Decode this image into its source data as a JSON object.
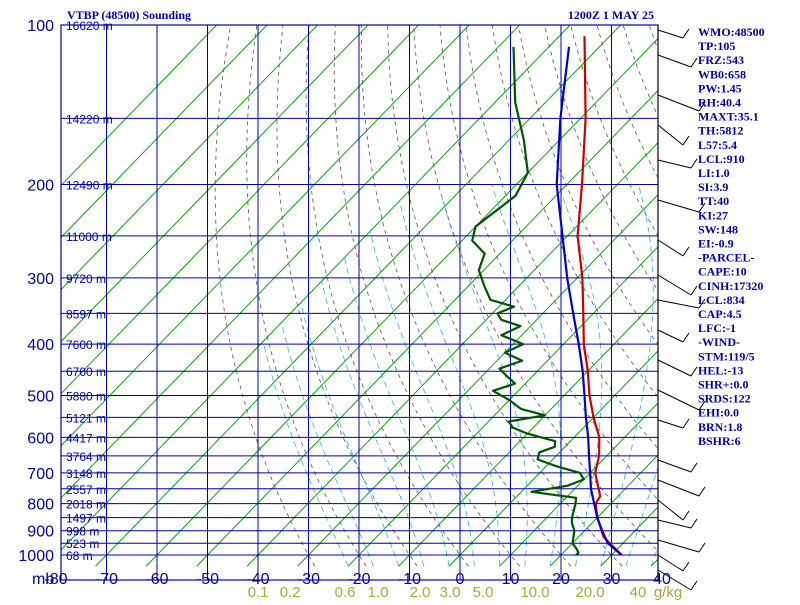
{
  "chart_data": {
    "type": "skew-t log-p sounding",
    "title": "VTBP (48500) Sounding",
    "time_label": "1200Z  1 MAY 25",
    "pressure_labels": [
      "100",
      "200",
      "300",
      "400",
      "500",
      "600",
      "700",
      "800",
      "900",
      "1000",
      "mb"
    ],
    "pressure_levels": [
      100,
      200,
      300,
      400,
      500,
      600,
      700,
      800,
      900,
      1000
    ],
    "height_levels": [
      {
        "p": 100,
        "label": "16620 m"
      },
      {
        "p": 150,
        "label": "14220 m"
      },
      {
        "p": 200,
        "label": "12490 m"
      },
      {
        "p": 250,
        "label": "11000 m"
      },
      {
        "p": 300,
        "label": "9720 m"
      },
      {
        "p": 350,
        "label": "8597 m"
      },
      {
        "p": 400,
        "label": "7600 m"
      },
      {
        "p": 450,
        "label": "6700 m"
      },
      {
        "p": 500,
        "label": "5880 m"
      },
      {
        "p": 550,
        "label": "5121 m"
      },
      {
        "p": 600,
        "label": "4417 m"
      },
      {
        "p": 650,
        "label": "3764 m"
      },
      {
        "p": 700,
        "label": "3148 m"
      },
      {
        "p": 750,
        "label": "2557 m"
      },
      {
        "p": 800,
        "label": "2018 m"
      },
      {
        "p": 850,
        "label": "1497 m"
      },
      {
        "p": 900,
        "label": "998 m"
      },
      {
        "p": 950,
        "label": "523 m"
      },
      {
        "p": 1000,
        "label": "68 m"
      }
    ],
    "temperature_ticks": [
      -80,
      -70,
      -60,
      -50,
      -40,
      -30,
      -20,
      -10,
      0,
      10,
      20,
      30,
      40
    ],
    "temperature_tick_labels": [
      "-80",
      "-70",
      "-60",
      "-50",
      "-40",
      "-30",
      "-20",
      "-10",
      "0",
      "10",
      "20",
      "30",
      "40"
    ],
    "mixing_ratio_labels": [
      "0.1",
      "0.2",
      "0.6",
      "1.0",
      "2.0",
      "3.0",
      "5.0",
      "10.0",
      "20.0",
      "40",
      "g/kg"
    ],
    "colors": {
      "frame": "#0000aa",
      "isobar": "#0000aa",
      "isotherm": "#00aa00",
      "dry_adiabat": "#555555",
      "moist_adiabat": "#33aaff",
      "temperature": "#cc0000",
      "dewpoint": "#005500",
      "parcel": "#0000cc",
      "mixing_label": "#aaaa33",
      "label": "#0000aa"
    },
    "series": [
      {
        "role": "temperature",
        "points": [
          [
            1000,
            32
          ],
          [
            925,
            25
          ],
          [
            850,
            20
          ],
          [
            800,
            17
          ],
          [
            775,
            16.5
          ],
          [
            700,
            11
          ],
          [
            650,
            8.5
          ],
          [
            600,
            5
          ],
          [
            550,
            0
          ],
          [
            500,
            -5
          ],
          [
            450,
            -10
          ],
          [
            400,
            -16
          ],
          [
            350,
            -22
          ],
          [
            300,
            -29
          ],
          [
            250,
            -38
          ],
          [
            200,
            -47
          ],
          [
            150,
            -59
          ],
          [
            120,
            -69
          ],
          [
            105,
            -75
          ]
        ]
      },
      {
        "role": "dewpoint",
        "points": [
          [
            1000,
            23
          ],
          [
            990,
            23
          ],
          [
            975,
            22
          ],
          [
            950,
            20
          ],
          [
            925,
            19
          ],
          [
            900,
            18
          ],
          [
            870,
            16
          ],
          [
            850,
            15
          ],
          [
            800,
            13
          ],
          [
            780,
            12
          ],
          [
            760,
            2
          ],
          [
            740,
            8
          ],
          [
            720,
            10
          ],
          [
            700,
            8
          ],
          [
            680,
            2
          ],
          [
            660,
            -3
          ],
          [
            640,
            -4
          ],
          [
            625,
            -2
          ],
          [
            610,
            -3
          ],
          [
            590,
            -10
          ],
          [
            575,
            -14
          ],
          [
            560,
            -16
          ],
          [
            545,
            -10
          ],
          [
            530,
            -16
          ],
          [
            510,
            -20
          ],
          [
            490,
            -25
          ],
          [
            475,
            -22
          ],
          [
            460,
            -25
          ],
          [
            445,
            -28
          ],
          [
            430,
            -25
          ],
          [
            415,
            -30
          ],
          [
            400,
            -28
          ],
          [
            385,
            -34
          ],
          [
            370,
            -32
          ],
          [
            360,
            -37
          ],
          [
            350,
            -39
          ],
          [
            340,
            -37
          ],
          [
            330,
            -43
          ],
          [
            310,
            -47
          ],
          [
            290,
            -51
          ],
          [
            270,
            -53
          ],
          [
            255,
            -58
          ],
          [
            240,
            -60
          ],
          [
            210,
            -58
          ],
          [
            190,
            -60
          ],
          [
            165,
            -67
          ],
          [
            140,
            -76
          ],
          [
            110,
            -87
          ]
        ]
      },
      {
        "role": "parcel",
        "points": [
          [
            1000,
            32
          ],
          [
            950,
            27
          ],
          [
            900,
            23.5
          ],
          [
            850,
            20
          ],
          [
            800,
            16.7
          ],
          [
            750,
            13.2
          ],
          [
            700,
            10
          ],
          [
            650,
            6.5
          ],
          [
            600,
            2.8
          ],
          [
            550,
            -1.5
          ],
          [
            500,
            -6
          ],
          [
            450,
            -11
          ],
          [
            400,
            -17
          ],
          [
            350,
            -24
          ],
          [
            300,
            -32
          ],
          [
            250,
            -41
          ],
          [
            200,
            -52
          ],
          [
            150,
            -64
          ],
          [
            110,
            -76
          ]
        ]
      }
    ]
  },
  "indices": [
    "WMO:48500",
    "TP:105",
    "FRZ:543",
    "WB0:658",
    "PW:1.45",
    "RH:40.4",
    "MAXT:35.1",
    "TH:5812",
    "L57:5.4",
    "LCL:910",
    "LI:1.0",
    "SI:3.9",
    "TT:40",
    "KI:27",
    "SW:148",
    "EI:-0.9",
    "-PARCEL-",
    "CAPE:10",
    "CINH:17320",
    "LCL:834",
    "CAP:4.5",
    "LFC:-1",
    "-WIND-",
    "STM:119/5",
    "HEL:-13",
    "SHR+:0.0",
    "SRDS:122",
    "EHI:0.0",
    "BRN:1.8",
    "BSHR:6"
  ]
}
